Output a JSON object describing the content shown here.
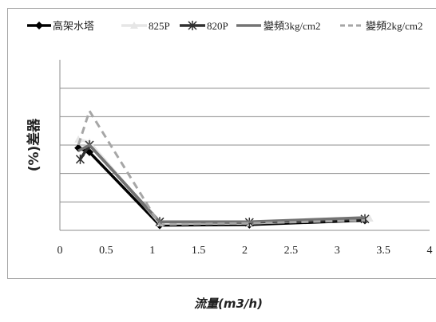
{
  "chart_data": {
    "type": "line",
    "title": "",
    "xlabel": "流量(m3/h)",
    "ylabel": "(%)差器",
    "xlim": [
      0,
      4
    ],
    "ylim": [
      0,
      6
    ],
    "x_ticks": [
      "0",
      "0.5",
      "1",
      "1.5",
      "2",
      "2.5",
      "3",
      "3.5",
      "4"
    ],
    "grid": "horizontal",
    "legend_position": "top",
    "series": [
      {
        "name": "高架水塔",
        "color": "#000000",
        "dash": "solid",
        "marker": "diamond",
        "x": [
          0.2,
          0.32,
          1.08,
          2.05,
          3.3
        ],
        "y": [
          2.9,
          2.75,
          0.18,
          0.2,
          0.35
        ]
      },
      {
        "name": "825P",
        "color": "#e6e6e6",
        "dash": "solid",
        "marker": "triangle",
        "x": [
          0.2,
          0.32,
          1.08,
          2.05,
          3.35
        ],
        "y": [
          3.2,
          3.1,
          0.25,
          0.25,
          0.42
        ]
      },
      {
        "name": "820P",
        "color": "#303030",
        "dash": "solid",
        "marker": "star",
        "x": [
          0.22,
          0.32,
          1.08,
          2.05,
          3.3
        ],
        "y": [
          2.5,
          3.0,
          0.3,
          0.28,
          0.4
        ]
      },
      {
        "name": "變頻3kg/cm2",
        "color": "#737373",
        "dash": "solid",
        "marker": "none",
        "x": [
          0.2,
          0.32,
          1.08,
          2.05,
          3.3
        ],
        "y": [
          2.8,
          3.0,
          0.3,
          0.3,
          0.45
        ]
      },
      {
        "name": "變頻2kg/cm2",
        "color": "#a6a6a6",
        "dash": "dashed",
        "marker": "none",
        "x": [
          0.2,
          0.32,
          1.08,
          2.05,
          3.3
        ],
        "y": [
          3.0,
          4.2,
          0.2,
          0.25,
          0.35
        ]
      }
    ]
  }
}
